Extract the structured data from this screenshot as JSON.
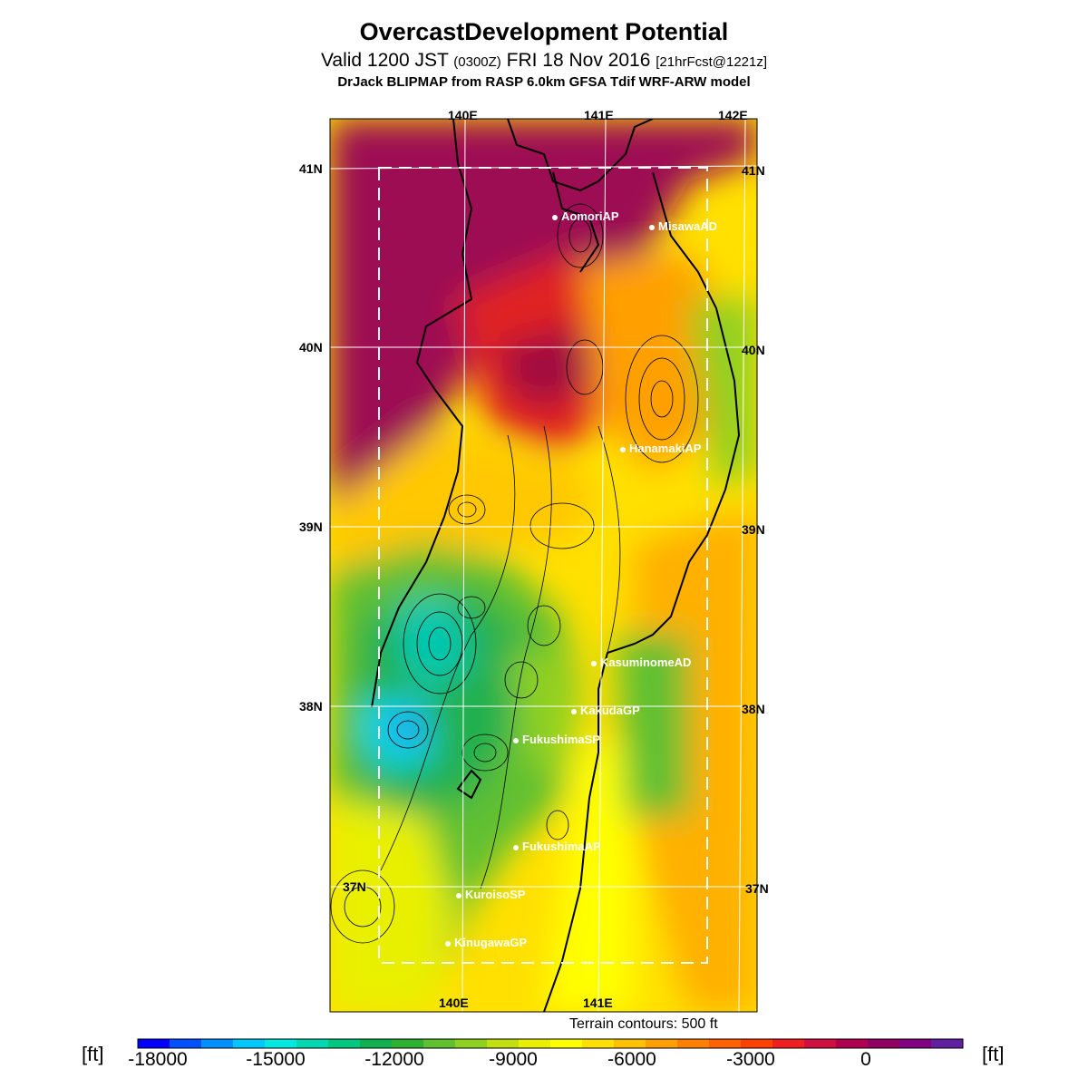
{
  "title": "OvercastDevelopment Potential",
  "subtitle": {
    "valid": "Valid 1200 JST",
    "zulu": "(0300Z)",
    "date": "FRI 18 Nov 2016",
    "fcst": "[21hrFcst@1221z]"
  },
  "model_line": "DrJack BLIPMAP from RASP 6.0km GFSA Tdif WRF-ARW model",
  "grid_labels": {
    "top_lon": [
      "140E",
      "141E",
      "142E"
    ],
    "bottom_lon": [
      "140E",
      "141E"
    ],
    "left_lat": [
      "41N",
      "40N",
      "39N",
      "38N",
      "37N"
    ],
    "right_lat": [
      "41N",
      "40N",
      "39N",
      "38N",
      "37N"
    ]
  },
  "stations": [
    {
      "name": "AomoriAP"
    },
    {
      "name": "MisawaAD"
    },
    {
      "name": "HanamakiAP"
    },
    {
      "name": "KasuminomeAD"
    },
    {
      "name": "KakudaGP"
    },
    {
      "name": "FukushimaSP"
    },
    {
      "name": "FukushimaAP"
    },
    {
      "name": "KuroisoSP"
    },
    {
      "name": "KinugawaGP"
    }
  ],
  "terrain_note": "Terrain contours: 500 ft",
  "colorbar": {
    "unit": "[ft]",
    "ticks": [
      "-18000",
      "-15000",
      "-12000",
      "-9000",
      "-6000",
      "-3000",
      "0"
    ],
    "colors": [
      "#0000ff",
      "#0050ff",
      "#0090ff",
      "#00c8ff",
      "#00e8e0",
      "#00d8b0",
      "#00c880",
      "#10b050",
      "#30b030",
      "#60c030",
      "#90d020",
      "#c0e010",
      "#e8f000",
      "#ffff00",
      "#ffe000",
      "#ffc000",
      "#ffa000",
      "#ff8000",
      "#ff6000",
      "#ff4000",
      "#f02020",
      "#d01040",
      "#b00050",
      "#900060",
      "#800080",
      "#6020a0"
    ]
  }
}
